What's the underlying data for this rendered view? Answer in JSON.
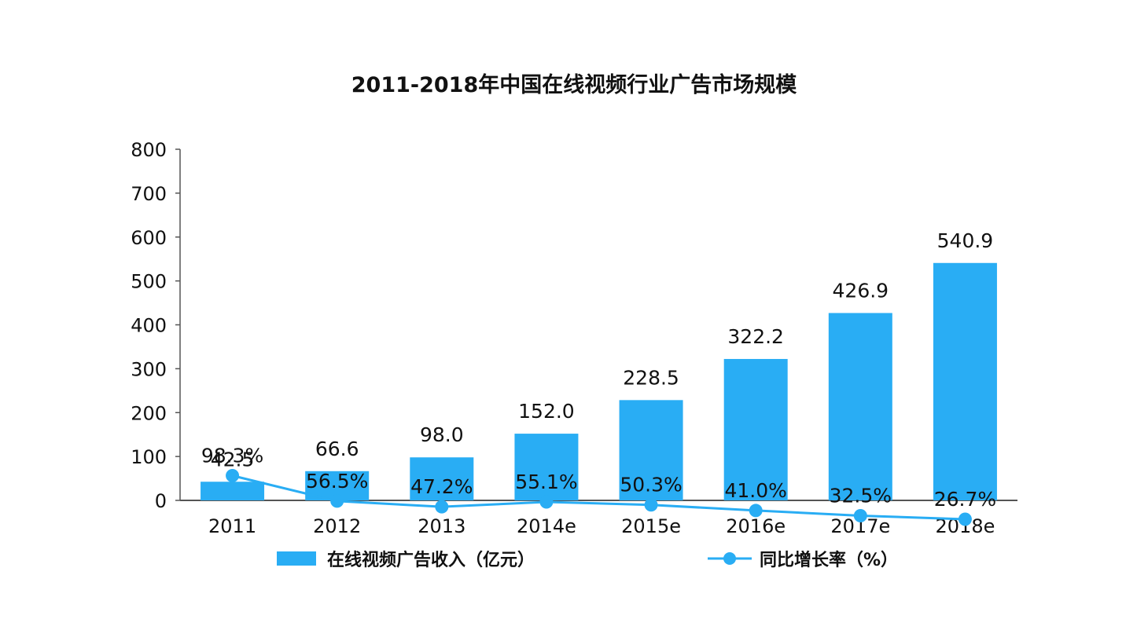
{
  "chart_data": {
    "type": "bar",
    "title": "2011-2018年中国在线视频行业广告市场规模",
    "categories": [
      "2011",
      "2012",
      "2013",
      "2014e",
      "2015e",
      "2016e",
      "2017e",
      "2018e"
    ],
    "series": [
      {
        "name": "在线视频广告收入（亿元）",
        "type": "bar",
        "values": [
          42.5,
          66.6,
          98.0,
          152.0,
          228.5,
          322.2,
          426.9,
          540.9
        ],
        "labels": [
          "42.5",
          "66.6",
          "98.0",
          "152.0",
          "228.5",
          "322.2",
          "426.9",
          "540.9"
        ]
      },
      {
        "name": "同比增长率（%）",
        "type": "line",
        "values": [
          98.3,
          56.5,
          47.2,
          55.1,
          50.3,
          41.0,
          32.5,
          26.7
        ],
        "labels": [
          "98.3%",
          "56.5%",
          "47.2%",
          "55.1%",
          "50.3%",
          "41.0%",
          "32.5%",
          "26.7%"
        ]
      }
    ],
    "yticks": [
      "0",
      "100",
      "200",
      "300",
      "400",
      "500",
      "600",
      "700",
      "800"
    ],
    "ylim": [
      0,
      800
    ],
    "colors": {
      "bar": "#29adf4",
      "line": "#29adf4",
      "axis": "#555555"
    },
    "legend_position": "bottom",
    "grid": false
  }
}
